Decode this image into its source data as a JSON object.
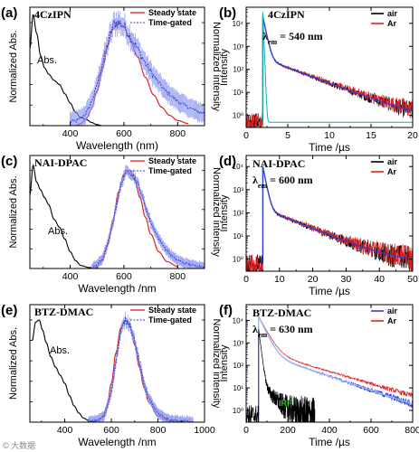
{
  "chart_data": [
    {
      "id": "a",
      "panel_label": "(a)",
      "type": "line",
      "sample": "4CzIPN",
      "xlabel": "Wavelength (nm)",
      "ylabel_left": "Normalized Abs.",
      "ylabel_right": "Normalized intensity",
      "xlim": [
        250,
        900
      ],
      "xticks": [
        400,
        600,
        800
      ],
      "ylim": [
        0,
        1.15
      ],
      "abs_label": "Abs.",
      "legend": [
        "Steady state",
        "Time-gated"
      ],
      "series": [
        {
          "name": "Abs.",
          "color": "#000000",
          "style": "solid",
          "x": [
            250,
            262,
            275,
            290,
            305,
            320,
            340,
            360,
            380,
            400,
            420,
            440,
            460,
            480,
            500,
            520
          ],
          "y": [
            0.75,
            1.08,
            0.9,
            0.68,
            0.56,
            0.5,
            0.44,
            0.4,
            0.31,
            0.22,
            0.13,
            0.08,
            0.06,
            0.03,
            0.01,
            0.0
          ]
        },
        {
          "name": "Steady state",
          "color": "#e02020",
          "style": "solid",
          "x": [
            420,
            440,
            460,
            480,
            500,
            520,
            540,
            560,
            580,
            600,
            620,
            650,
            680,
            710,
            740,
            770,
            800,
            840
          ],
          "y": [
            0.0,
            0.02,
            0.07,
            0.17,
            0.33,
            0.55,
            0.78,
            0.94,
            1.0,
            0.96,
            0.86,
            0.67,
            0.47,
            0.3,
            0.18,
            0.1,
            0.05,
            0.02
          ]
        },
        {
          "name": "Time-gated",
          "color": "#2c3fd6",
          "style": "dotted",
          "x": [
            400,
            430,
            460,
            490,
            520,
            545,
            565,
            585,
            605,
            630,
            660,
            690,
            720,
            750,
            780,
            810,
            840,
            870,
            900
          ],
          "y": [
            0.04,
            0.05,
            0.12,
            0.3,
            0.6,
            0.85,
            1.0,
            1.0,
            0.95,
            0.84,
            0.7,
            0.56,
            0.45,
            0.35,
            0.28,
            0.22,
            0.18,
            0.14,
            0.12
          ]
        }
      ]
    },
    {
      "id": "b",
      "panel_label": "(b)",
      "type": "line",
      "sample": "4CzIPN",
      "xlabel": "Time /µs",
      "ylabel": "Intensity",
      "y_scale": "log",
      "xlim": [
        0,
        20
      ],
      "xticks": [
        0,
        5,
        10,
        15,
        20
      ],
      "ylim": [
        0.3,
        50000
      ],
      "yticks": [
        "10⁰",
        "10¹",
        "10²",
        "10³",
        "10⁴"
      ],
      "annotation": "λem = 540 nm",
      "annotation_main": "λ",
      "annotation_sub": "em",
      "annotation_rest": " = 540 nm",
      "legend": [
        "air",
        "Ar"
      ],
      "series": [
        {
          "name": "air",
          "color": "#000000",
          "onset": 2.0,
          "peak": 20000,
          "tau1": 0.25,
          "a1": 0.985,
          "tau2": 3.2,
          "floor": 0.5,
          "noise": 0.5
        },
        {
          "name": "Ar",
          "color": "#e02020",
          "onset": 2.0,
          "peak": 20000,
          "tau1": 0.25,
          "a1": 0.985,
          "tau2": 3.3,
          "floor": 0.5,
          "noise": 0.55
        },
        {
          "name": "fit",
          "color": "#2c3fd6",
          "onset": 2.0,
          "peak": 20000,
          "tau1": 0.25,
          "a1": 0.985,
          "tau2": 3.2,
          "floor": 0.5,
          "noise": 0
        },
        {
          "name": "IRF",
          "color": "#18a8a8",
          "onset": 2.0,
          "peak": 30000,
          "tau1": 0.05,
          "a1": 1.0,
          "tau2": 1,
          "floor": 0.5,
          "noise": 0
        }
      ]
    },
    {
      "id": "c",
      "panel_label": "(c)",
      "type": "line",
      "sample": "NAI-DPAC",
      "xlabel": "Wavelength /nm",
      "ylabel_left": "Normalized Abs.",
      "ylabel_right": "Normalized intensity",
      "xlim": [
        250,
        900
      ],
      "xticks": [
        400,
        600,
        800
      ],
      "ylim": [
        0,
        1.15
      ],
      "abs_label": "Abs.",
      "legend": [
        "Steady state",
        "Time-gated"
      ],
      "series": [
        {
          "name": "Abs.",
          "color": "#000000",
          "style": "solid",
          "x": [
            250,
            262,
            275,
            290,
            305,
            320,
            340,
            360,
            380,
            400,
            420,
            440,
            470,
            500
          ],
          "y": [
            0.75,
            1.05,
            0.88,
            0.8,
            0.72,
            0.65,
            0.5,
            0.42,
            0.3,
            0.17,
            0.08,
            0.03,
            0.01,
            0.0
          ]
        },
        {
          "name": "Steady state",
          "color": "#e02020",
          "style": "solid",
          "x": [
            480,
            500,
            520,
            540,
            560,
            580,
            600,
            620,
            640,
            660,
            680,
            700,
            730,
            760,
            800
          ],
          "y": [
            0.0,
            0.02,
            0.08,
            0.24,
            0.5,
            0.78,
            0.96,
            1.0,
            0.9,
            0.72,
            0.52,
            0.35,
            0.17,
            0.07,
            0.02
          ]
        },
        {
          "name": "Time-gated",
          "color": "#2c3fd6",
          "style": "dotted",
          "x": [
            480,
            500,
            520,
            540,
            560,
            580,
            600,
            620,
            640,
            660,
            680,
            700,
            730,
            760,
            790,
            820,
            860,
            900
          ],
          "y": [
            0.0,
            0.04,
            0.1,
            0.25,
            0.48,
            0.75,
            0.95,
            1.0,
            0.93,
            0.8,
            0.63,
            0.47,
            0.3,
            0.18,
            0.1,
            0.06,
            0.03,
            0.02
          ]
        }
      ]
    },
    {
      "id": "d",
      "panel_label": "(d)",
      "type": "line",
      "sample": "NAI-DPAC",
      "xlabel": "Time /µs",
      "ylabel": "Intensity",
      "y_scale": "log",
      "xlim": [
        0,
        50
      ],
      "xticks": [
        0,
        10,
        20,
        30,
        40,
        50
      ],
      "ylim": [
        0.3,
        30000
      ],
      "yticks": [
        "10⁰",
        "10¹",
        "10²",
        "10³",
        "10⁴"
      ],
      "annotation": "λem = 600 nm",
      "annotation_main": "λ",
      "annotation_sub": "em",
      "annotation_rest": " = 600 nm",
      "legend": [
        "air",
        "Ar"
      ],
      "series": [
        {
          "name": "air",
          "color": "#000000",
          "onset": 5.0,
          "peak": 10000,
          "tau1": 0.6,
          "a1": 0.985,
          "tau2": 7.5,
          "floor": 0.6,
          "noise": 0.55
        },
        {
          "name": "Ar",
          "color": "#e02020",
          "onset": 5.0,
          "peak": 10000,
          "tau1": 0.6,
          "a1": 0.985,
          "tau2": 7.8,
          "floor": 0.6,
          "noise": 0.55
        },
        {
          "name": "fit",
          "color": "#2c3fd6",
          "onset": 5.0,
          "peak": 10000,
          "tau1": 0.6,
          "a1": 0.985,
          "tau2": 7.5,
          "floor": 0.6,
          "noise": 0
        }
      ]
    },
    {
      "id": "e",
      "panel_label": "(e)",
      "type": "line",
      "sample": "BTZ-DMAC",
      "xlabel": "Wavelength /nm",
      "ylabel_left": "Normalized Abs.",
      "ylabel_right": "Normalized intensity",
      "xlim": [
        250,
        1000
      ],
      "xticks": [
        400,
        600,
        800,
        1000
      ],
      "ylim": [
        0,
        1.15
      ],
      "abs_label": "Abs.",
      "legend": [
        "Steady state",
        "Time-gated"
      ],
      "series": [
        {
          "name": "Abs.",
          "color": "#000000",
          "style": "solid",
          "x": [
            260,
            275,
            290,
            305,
            320,
            340,
            360,
            380,
            400,
            420,
            440,
            460,
            480,
            500,
            530
          ],
          "y": [
            0.8,
            0.98,
            1.0,
            0.9,
            0.78,
            0.64,
            0.54,
            0.46,
            0.38,
            0.26,
            0.16,
            0.09,
            0.04,
            0.02,
            0.0
          ]
        },
        {
          "name": "Steady state",
          "color": "#e02020",
          "style": "solid",
          "x": [
            540,
            560,
            580,
            600,
            620,
            640,
            660,
            680,
            700,
            720,
            740,
            760,
            800,
            850,
            900
          ],
          "y": [
            0.0,
            0.04,
            0.14,
            0.38,
            0.68,
            0.92,
            1.0,
            0.94,
            0.76,
            0.54,
            0.34,
            0.2,
            0.06,
            0.01,
            0.0
          ]
        },
        {
          "name": "Time-gated",
          "color": "#2c3fd6",
          "style": "dotted",
          "x": [
            500,
            540,
            570,
            600,
            620,
            640,
            660,
            680,
            700,
            720,
            740,
            760,
            800,
            850,
            900,
            950
          ],
          "y": [
            0.0,
            0.02,
            0.06,
            0.3,
            0.6,
            0.88,
            1.0,
            0.96,
            0.8,
            0.58,
            0.38,
            0.24,
            0.08,
            0.02,
            0.01,
            0.0
          ]
        }
      ]
    },
    {
      "id": "f",
      "panel_label": "(f)",
      "type": "line",
      "sample": "BTZ-DMAC",
      "xlabel": "Time /µs",
      "ylabel": "Intensity",
      "y_scale": "log",
      "xlim": [
        0,
        800
      ],
      "xticks": [
        0,
        200,
        400,
        600,
        800
      ],
      "ylim": [
        0.3,
        50000
      ],
      "yticks": [
        "10⁰",
        "10¹",
        "10²",
        "10³",
        "10⁴"
      ],
      "annotation": "λem = 630 nm",
      "annotation_main": "λ",
      "annotation_sub": "em",
      "annotation_rest": " = 630 nm",
      "legend": [
        "air",
        "Ar"
      ],
      "irf_label": "IRF",
      "series": [
        {
          "name": "Ar",
          "color": "#e02020",
          "onset": 60,
          "peak": 15000,
          "tau1": 25,
          "a1": 0.97,
          "tau2": 160,
          "floor": 0,
          "noise": 0.25
        },
        {
          "name": "air",
          "color": "#2c3fd6",
          "onset": 60,
          "peak": 15000,
          "tau1": 22,
          "a1": 0.975,
          "tau2": 140,
          "floor": 0,
          "noise": 0.25
        },
        {
          "name": "fit",
          "color": "#9ab4ff",
          "onset": 60,
          "peak": 15000,
          "tau1": 22,
          "a1": 0.975,
          "tau2": 140,
          "floor": 0,
          "noise": 0
        },
        {
          "name": "IRF",
          "color": "#000000",
          "onset": 60,
          "peak": 4000,
          "tau1": 6,
          "a1": 0.995,
          "tau2": 40,
          "floor": 0.6,
          "noise": 0.6,
          "end": 330
        }
      ]
    }
  ],
  "watermark": "© 大数据"
}
